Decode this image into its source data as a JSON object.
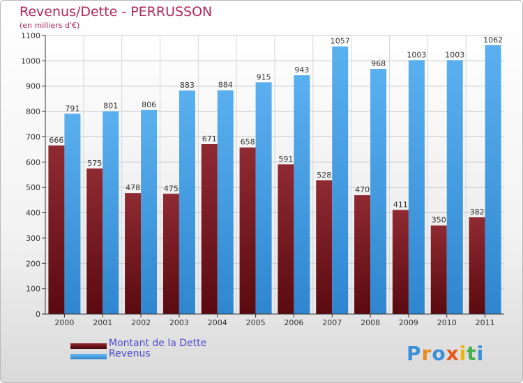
{
  "title": "Revenus/Dette - PERRUSSON",
  "subtitle": "(en milliers d'€)",
  "logo_text": "Proxiti",
  "colors": {
    "title": "#b0285a",
    "debt": "#7a1a22",
    "revenue": "#4ea6e8",
    "legend_text": "#4a4acb"
  },
  "legend": [
    {
      "name": "Montant de la Dette",
      "color": "#6b0f15"
    },
    {
      "name": "Revenus",
      "color": "#4ea6e8"
    }
  ],
  "chart_data": {
    "type": "bar",
    "categories": [
      "2000",
      "2001",
      "2002",
      "2003",
      "2004",
      "2005",
      "2006",
      "2007",
      "2008",
      "2009",
      "2010",
      "2011"
    ],
    "series": [
      {
        "name": "Montant de la Dette",
        "values": [
          666,
          575,
          478,
          475,
          671,
          658,
          591,
          528,
          470,
          411,
          350,
          382
        ]
      },
      {
        "name": "Revenus",
        "values": [
          791,
          801,
          806,
          883,
          884,
          915,
          943,
          1057,
          968,
          1003,
          1003,
          1062
        ]
      }
    ],
    "title": "Revenus/Dette - PERRUSSON",
    "subtitle": "(en milliers d'€)",
    "ylim": [
      0,
      1100
    ],
    "yticks": [
      0,
      100,
      200,
      300,
      400,
      500,
      600,
      700,
      800,
      900,
      1000,
      1100
    ],
    "grid": true,
    "legend_position": "bottom-left"
  }
}
